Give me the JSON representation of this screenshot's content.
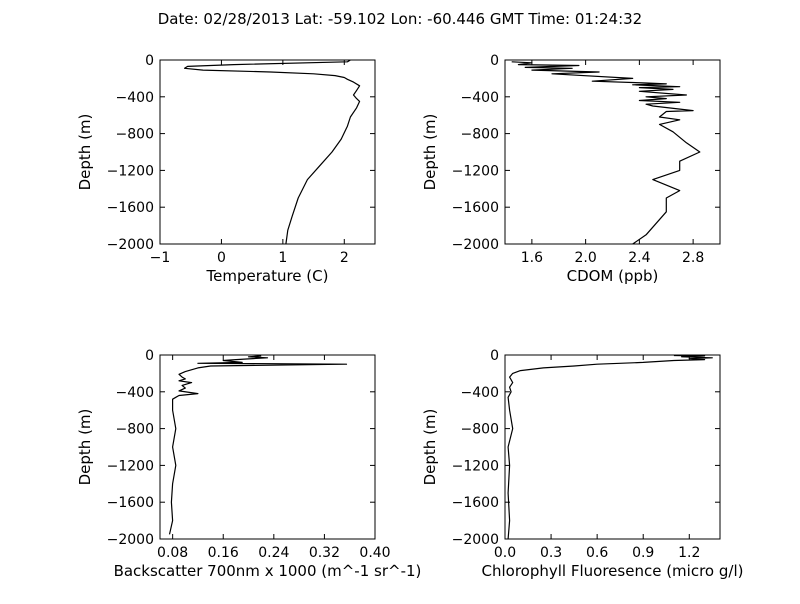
{
  "figure_title": "Date: 02/28/2013  Lat:  -59.102 Lon:  -60.446  GMT Time: 01:24:32",
  "chart_data": [
    {
      "type": "line",
      "xlabel": "Temperature (C)",
      "ylabel": "Depth (m)",
      "xlim": [
        -1,
        2.5
      ],
      "ylim": [
        -2000,
        0
      ],
      "xticks": [
        "−1",
        "0",
        "1",
        "2"
      ],
      "xtick_values": [
        -1,
        0,
        1,
        2
      ],
      "yticks": [
        "0",
        "−400",
        "−800",
        "−1200",
        "−1600",
        "−2000"
      ],
      "ytick_values": [
        0,
        -400,
        -800,
        -1200,
        -1600,
        -2000
      ],
      "series": [
        {
          "x": [
            2.1,
            2.05,
            0.2,
            -0.55,
            -0.6,
            -0.3,
            0.8,
            1.5,
            1.85,
            2.0,
            2.05,
            2.15,
            2.25,
            2.2,
            2.15,
            2.2,
            2.25,
            2.2,
            2.1,
            2.05,
            1.95,
            1.8,
            1.6,
            1.4,
            1.25,
            1.15,
            1.08,
            1.05
          ],
          "y": [
            0,
            -20,
            -50,
            -70,
            -90,
            -110,
            -130,
            -150,
            -170,
            -190,
            -210,
            -240,
            -280,
            -330,
            -380,
            -420,
            -450,
            -520,
            -620,
            -720,
            -860,
            -1000,
            -1150,
            -1300,
            -1500,
            -1700,
            -1850,
            -2000
          ]
        }
      ]
    },
    {
      "type": "line",
      "xlabel": "CDOM (ppb)",
      "ylabel": "Depth (m)",
      "xlim": [
        1.4,
        3.0
      ],
      "ylim": [
        -2000,
        0
      ],
      "xticks": [
        "1.6",
        "2.0",
        "2.4",
        "2.8"
      ],
      "xtick_values": [
        1.6,
        2.0,
        2.4,
        2.8
      ],
      "yticks": [
        "0",
        "−400",
        "−800",
        "−1200",
        "−1600",
        "−2000"
      ],
      "ytick_values": [
        0,
        -400,
        -800,
        -1200,
        -1600,
        -2000
      ],
      "series": [
        {
          "x": [
            1.45,
            1.6,
            1.5,
            1.95,
            1.55,
            1.9,
            1.6,
            2.1,
            1.75,
            2.35,
            2.05,
            2.45,
            2.6,
            2.35,
            2.7,
            2.4,
            2.65,
            2.4,
            2.75,
            2.45,
            2.6,
            2.4,
            2.7,
            2.45,
            2.5,
            2.8,
            2.6,
            2.55,
            2.7,
            2.55,
            2.65,
            2.75,
            2.85,
            2.7,
            2.7,
            2.5,
            2.7,
            2.6,
            2.6,
            2.45,
            2.35
          ],
          "y": [
            -20,
            -30,
            -50,
            -60,
            -80,
            -90,
            -110,
            -130,
            -150,
            -200,
            -230,
            -250,
            -260,
            -270,
            -290,
            -300,
            -320,
            -340,
            -380,
            -400,
            -420,
            -440,
            -460,
            -480,
            -500,
            -550,
            -560,
            -620,
            -650,
            -700,
            -780,
            -900,
            -1000,
            -1100,
            -1200,
            -1300,
            -1420,
            -1500,
            -1650,
            -1900,
            -2000
          ]
        }
      ]
    },
    {
      "type": "line",
      "xlabel": "Backscatter 700nm x 1000 (m^-1 sr^-1)",
      "ylabel": "Depth (m)",
      "xlim": [
        0.06,
        0.4
      ],
      "ylim": [
        -2000,
        0
      ],
      "xticks": [
        "0.08",
        "0.16",
        "0.24",
        "0.32",
        "0.40"
      ],
      "xtick_values": [
        0.08,
        0.16,
        0.24,
        0.32,
        0.4
      ],
      "yticks": [
        "0",
        "−400",
        "−800",
        "−1200",
        "−1600",
        "−2000"
      ],
      "ytick_values": [
        0,
        -400,
        -800,
        -1200,
        -1600,
        -2000
      ],
      "series": [
        {
          "x": [
            0.22,
            0.2,
            0.23,
            0.18,
            0.16,
            0.19,
            0.12,
            0.355,
            0.14,
            0.12,
            0.1,
            0.09,
            0.095,
            0.1,
            0.09,
            0.11,
            0.095,
            0.1,
            0.09,
            0.12,
            0.09,
            0.085,
            0.08,
            0.08,
            0.085,
            0.08,
            0.085,
            0.08,
            0.078,
            0.08,
            0.075
          ],
          "y": [
            -10,
            -20,
            -30,
            -50,
            -60,
            -80,
            -90,
            -100,
            -120,
            -140,
            -180,
            -210,
            -240,
            -260,
            -280,
            -300,
            -330,
            -360,
            -390,
            -420,
            -440,
            -460,
            -480,
            -600,
            -800,
            -1000,
            -1200,
            -1400,
            -1600,
            -1800,
            -1950
          ]
        }
      ]
    },
    {
      "type": "line",
      "xlabel": "Chlorophyll Fluoresence (micro g/l)",
      "ylabel": "Depth (m)",
      "xlim": [
        0.0,
        1.4
      ],
      "ylim": [
        -2000,
        0
      ],
      "xticks": [
        "0.0",
        "0.3",
        "0.6",
        "0.9",
        "1.2"
      ],
      "xtick_values": [
        0.0,
        0.3,
        0.6,
        0.9,
        1.2
      ],
      "yticks": [
        "0",
        "−400",
        "−800",
        "−1200",
        "−1600",
        "−2000"
      ],
      "ytick_values": [
        0,
        -400,
        -800,
        -1200,
        -1600,
        -2000
      ],
      "series": [
        {
          "x": [
            1.1,
            1.3,
            1.15,
            1.35,
            1.2,
            1.3,
            1.1,
            0.9,
            0.6,
            0.45,
            0.25,
            0.1,
            0.05,
            0.03,
            0.05,
            0.03,
            0.04,
            0.02,
            0.03,
            0.05,
            0.02,
            0.03,
            0.02,
            0.03,
            0.02
          ],
          "y": [
            -5,
            -10,
            -20,
            -30,
            -40,
            -50,
            -60,
            -80,
            -100,
            -120,
            -140,
            -170,
            -200,
            -240,
            -300,
            -350,
            -400,
            -460,
            -600,
            -800,
            -1000,
            -1200,
            -1500,
            -1800,
            -2000
          ]
        }
      ]
    }
  ]
}
